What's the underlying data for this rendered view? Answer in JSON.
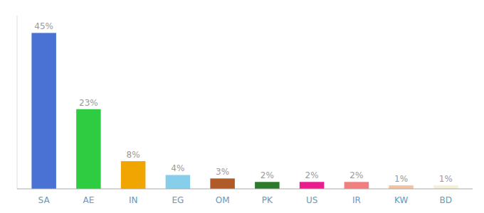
{
  "chart_data": {
    "type": "bar",
    "categories": [
      "SA",
      "AE",
      "IN",
      "EG",
      "OM",
      "PK",
      "US",
      "IR",
      "KW",
      "BD"
    ],
    "values": [
      45,
      23,
      8,
      4,
      3,
      2,
      2,
      2,
      1,
      1
    ],
    "value_labels": [
      "45%",
      "23%",
      "8%",
      "4%",
      "3%",
      "2%",
      "2%",
      "2%",
      "1%",
      "1%"
    ],
    "colors": [
      "#4a72d5",
      "#2ecc40",
      "#f0a500",
      "#87ceeb",
      "#b05a28",
      "#2d7a2d",
      "#e91e8c",
      "#f08080",
      "#f4c2a1",
      "#f5f0d8"
    ],
    "ylim": [
      0,
      50
    ],
    "data_labels": true,
    "tick_labels": "x",
    "grid": false
  }
}
